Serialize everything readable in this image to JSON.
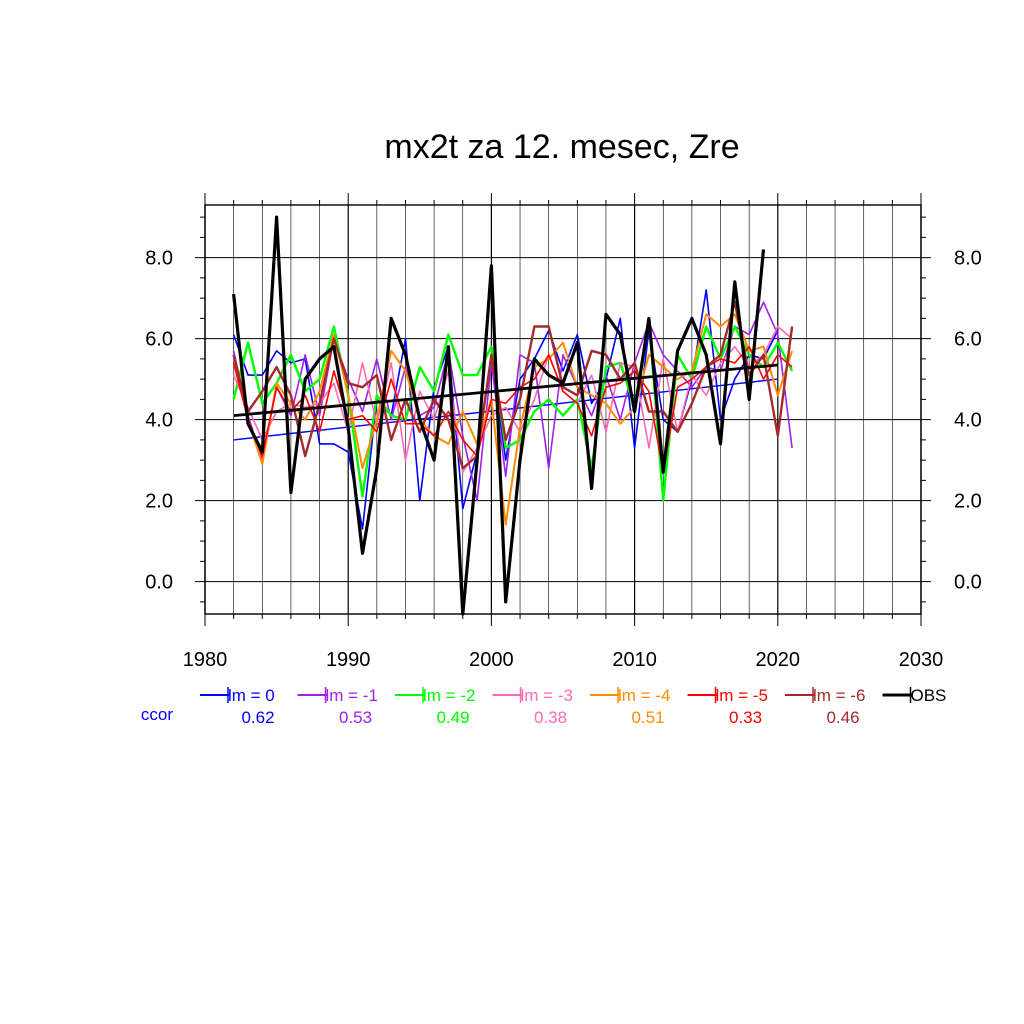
{
  "chart_data": {
    "type": "line",
    "title": "mx2t za 12. mesec, Zre",
    "xlabel": "",
    "ylabel": "",
    "xlim": [
      1980,
      2030
    ],
    "ylim": [
      -0.8,
      9.3
    ],
    "x_ticks": [
      "1980",
      "1990",
      "2000",
      "2010",
      "2020",
      "2030"
    ],
    "y_ticks": [
      "0.0",
      "2.0",
      "4.0",
      "6.0",
      "8.0"
    ],
    "y_tick_values": [
      0,
      2,
      4,
      6,
      8
    ],
    "grid": true,
    "legend_position": "bottom",
    "ccor_label": "ccor",
    "series": [
      {
        "name": "lm = 0",
        "color": "#0000ff",
        "ccor": "0.62",
        "width": 1.6,
        "x": [
          1982,
          1983,
          1984,
          1985,
          1986,
          1987,
          1988,
          1989,
          1990,
          1991,
          1992,
          1993,
          1994,
          1995,
          1996,
          1997,
          1998,
          1999,
          2000,
          2001,
          2002,
          2003,
          2004,
          2005,
          2006,
          2007,
          2008,
          2009,
          2010,
          2011,
          2012,
          2013,
          2014,
          2015,
          2016,
          2017,
          2018,
          2019,
          2020
        ],
        "y": [
          6.1,
          5.1,
          5.1,
          5.7,
          5.4,
          5.5,
          3.4,
          3.4,
          3.2,
          1.3,
          4.5,
          4.1,
          6.0,
          2.0,
          4.8,
          5.8,
          1.8,
          3.2,
          5.6,
          3.0,
          5.0,
          5.5,
          6.2,
          5.2,
          6.1,
          4.4,
          5.0,
          6.5,
          3.3,
          6.2,
          4.0,
          3.7,
          5.0,
          7.2,
          4.0,
          5.0,
          5.6,
          5.5,
          6.2
        ],
        "trend": [
          [
            1982,
            3.5
          ],
          [
            2020,
            5.0
          ]
        ]
      },
      {
        "name": "lm = -1",
        "color": "#a020f0",
        "ccor": "0.53",
        "width": 1.6,
        "x": [
          1982,
          1983,
          1984,
          1985,
          1986,
          1987,
          1988,
          1989,
          1990,
          1991,
          1992,
          1993,
          1994,
          1995,
          1996,
          1997,
          1998,
          1999,
          2000,
          2001,
          2002,
          2003,
          2004,
          2005,
          2006,
          2007,
          2008,
          2009,
          2010,
          2011,
          2012,
          2013,
          2014,
          2015,
          2016,
          2017,
          2018,
          2019,
          2020,
          2021
        ],
        "y": [
          5.7,
          4.1,
          3.0,
          4.8,
          4.1,
          5.6,
          4.1,
          6.0,
          5.0,
          4.2,
          5.5,
          4.0,
          5.3,
          4.1,
          4.3,
          5.7,
          3.6,
          2.0,
          5.4,
          2.6,
          5.6,
          5.4,
          2.8,
          5.6,
          4.8,
          4.1,
          5.1,
          4.0,
          5.4,
          6.4,
          5.6,
          5.2,
          4.8,
          5.3,
          5.2,
          6.3,
          6.1,
          6.9,
          6.1,
          3.3
        ]
      },
      {
        "name": "lm = -2",
        "color": "#00ff00",
        "ccor": "0.49",
        "width": 2.4,
        "x": [
          1982,
          1983,
          1984,
          1985,
          1986,
          1987,
          1988,
          1989,
          1990,
          1991,
          1992,
          1993,
          1994,
          1995,
          1996,
          1997,
          1998,
          1999,
          2000,
          2001,
          2002,
          2003,
          2004,
          2005,
          2006,
          2007,
          2008,
          2009,
          2010,
          2011,
          2012,
          2013,
          2014,
          2015,
          2016,
          2017,
          2018,
          2019,
          2020,
          2021
        ],
        "y": [
          4.5,
          5.9,
          4.4,
          4.9,
          5.6,
          4.7,
          5.0,
          6.3,
          4.6,
          2.1,
          4.6,
          4.1,
          4.0,
          5.3,
          4.7,
          6.1,
          5.1,
          5.1,
          5.8,
          3.3,
          3.5,
          4.2,
          4.5,
          4.1,
          4.5,
          2.8,
          5.3,
          5.4,
          4.3,
          6.5,
          2.0,
          5.6,
          5.0,
          6.3,
          5.5,
          6.3,
          5.6,
          5.3,
          5.9,
          5.2
        ]
      },
      {
        "name": "lm = -3",
        "color": "#ff69b4",
        "ccor": "0.38",
        "width": 1.6,
        "x": [
          1982,
          1983,
          1984,
          1985,
          1986,
          1987,
          1988,
          1989,
          1990,
          1991,
          1992,
          1993,
          1994,
          1995,
          1996,
          1997,
          1998,
          1999,
          2000,
          2001,
          2002,
          2003,
          2004,
          2005,
          2006,
          2007,
          2008,
          2009,
          2010,
          2011,
          2012,
          2013,
          2014,
          2015,
          2016,
          2017,
          2018,
          2019,
          2020,
          2021
        ],
        "y": [
          5.1,
          4.3,
          3.5,
          4.2,
          4.4,
          4.3,
          4.4,
          4.9,
          3.7,
          5.4,
          3.9,
          5.4,
          3.0,
          4.7,
          4.0,
          5.2,
          2.7,
          3.3,
          4.1,
          4.3,
          3.7,
          4.5,
          5.6,
          4.7,
          4.4,
          5.1,
          3.7,
          5.4,
          5.3,
          3.3,
          5.5,
          3.7,
          5.1,
          4.6,
          5.4,
          5.8,
          5.3,
          5.6,
          6.3,
          6.0
        ]
      },
      {
        "name": "lm = -4",
        "color": "#ff8c00",
        "ccor": "0.51",
        "width": 2.0,
        "x": [
          1982,
          1983,
          1984,
          1985,
          1986,
          1987,
          1988,
          1989,
          1990,
          1991,
          1992,
          1993,
          1994,
          1995,
          1996,
          1997,
          1998,
          1999,
          2000,
          2001,
          2002,
          2003,
          2004,
          2005,
          2006,
          2007,
          2008,
          2009,
          2010,
          2011,
          2012,
          2013,
          2014,
          2015,
          2016,
          2017,
          2018,
          2019,
          2020,
          2021
        ],
        "y": [
          5.6,
          4.0,
          2.9,
          4.9,
          4.4,
          4.0,
          4.7,
          6.1,
          4.6,
          2.8,
          4.0,
          5.7,
          5.2,
          4.0,
          3.6,
          3.4,
          4.2,
          3.4,
          4.5,
          1.4,
          3.8,
          5.3,
          5.5,
          5.9,
          4.8,
          4.6,
          4.4,
          3.9,
          4.3,
          5.6,
          5.3,
          5.0,
          5.2,
          6.6,
          6.3,
          6.6,
          5.7,
          5.8,
          4.6,
          5.7
        ]
      },
      {
        "name": "lm = -5",
        "color": "#ff0000",
        "ccor": "0.33",
        "width": 1.6,
        "x": [
          1982,
          1983,
          1984,
          1985,
          1986,
          1987,
          1988,
          1989,
          1990,
          1991,
          1992,
          1993,
          1994,
          1995,
          1996,
          1997,
          1998,
          1999,
          2000,
          2001,
          2002,
          2003,
          2004,
          2005,
          2006,
          2007,
          2008,
          2009,
          2010,
          2011,
          2012,
          2013,
          2014,
          2015,
          2016,
          2017,
          2018,
          2019,
          2020,
          2021
        ],
        "y": [
          5.4,
          4.0,
          3.1,
          4.8,
          4.2,
          4.6,
          3.7,
          5.2,
          4.0,
          4.1,
          3.7,
          5.0,
          3.9,
          3.9,
          3.6,
          4.2,
          3.5,
          3.1,
          4.5,
          4.4,
          4.8,
          5.0,
          5.6,
          4.7,
          4.4,
          3.6,
          4.8,
          4.9,
          5.2,
          4.7,
          2.7,
          4.8,
          5.0,
          5.3,
          5.5,
          5.4,
          5.8,
          5.0,
          5.6,
          5.3
        ]
      },
      {
        "name": "lm = -6",
        "color": "#a52a2a",
        "ccor": "0.46",
        "width": 2.4,
        "x": [
          1982,
          1983,
          1984,
          1985,
          1986,
          1987,
          1988,
          1989,
          1990,
          1991,
          1992,
          1993,
          1994,
          1995,
          1996,
          1997,
          1998,
          1999,
          2000,
          2001,
          2002,
          2003,
          2004,
          2005,
          2006,
          2007,
          2008,
          2009,
          2010,
          2011,
          2012,
          2013,
          2014,
          2015,
          2016,
          2017,
          2018,
          2019,
          2020,
          2021
        ],
        "y": [
          5.6,
          4.2,
          4.7,
          5.3,
          4.6,
          3.1,
          4.4,
          6.0,
          4.9,
          4.8,
          5.1,
          3.5,
          4.5,
          3.7,
          4.5,
          4.0,
          2.8,
          3.1,
          5.6,
          3.5,
          4.5,
          6.3,
          6.3,
          4.8,
          4.6,
          5.7,
          5.6,
          5.0,
          5.4,
          4.2,
          4.2,
          3.7,
          4.4,
          5.3,
          5.6,
          6.9,
          5.1,
          5.6,
          3.6,
          6.3
        ]
      },
      {
        "name": "OBS",
        "color": "#000000",
        "ccor": "",
        "width": 3.2,
        "x": [
          1982,
          1983,
          1984,
          1985,
          1986,
          1987,
          1988,
          1989,
          1990,
          1991,
          1992,
          1993,
          1994,
          1995,
          1996,
          1997,
          1998,
          1999,
          2000,
          2001,
          2002,
          2003,
          2004,
          2005,
          2006,
          2007,
          2008,
          2009,
          2010,
          2011,
          2012,
          2013,
          2014,
          2015,
          2016,
          2017,
          2018,
          2019
        ],
        "y": [
          7.1,
          3.9,
          3.2,
          9.0,
          2.2,
          5.0,
          5.5,
          5.8,
          3.8,
          0.7,
          2.8,
          6.5,
          5.6,
          4.0,
          3.0,
          5.8,
          -0.8,
          3.0,
          7.8,
          -0.5,
          3.0,
          5.5,
          5.1,
          4.9,
          5.9,
          2.3,
          6.6,
          6.1,
          4.2,
          6.5,
          2.7,
          5.7,
          6.5,
          5.6,
          3.4,
          7.4,
          4.5,
          8.2
        ],
        "trend": [
          [
            1982,
            4.1
          ],
          [
            2020,
            5.35
          ]
        ]
      }
    ]
  }
}
